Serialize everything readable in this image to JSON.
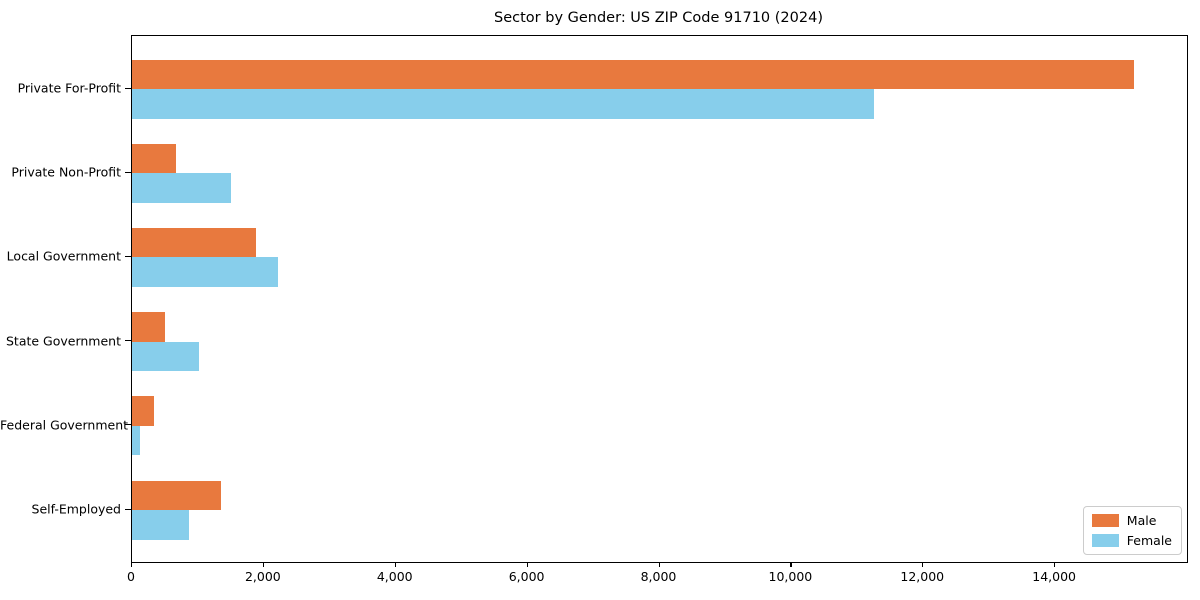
{
  "chart_data": {
    "type": "bar",
    "orientation": "horizontal",
    "title": "Sector by Gender: US ZIP Code 91710 (2024)",
    "categories": [
      "Private For-Profit",
      "Private Non-Profit",
      "Local Government",
      "State Government",
      "Federal Government",
      "Self-Employed"
    ],
    "series": [
      {
        "name": "Male",
        "color": "#e8793e",
        "values": [
          15200,
          670,
          1880,
          500,
          330,
          1350
        ]
      },
      {
        "name": "Female",
        "color": "#87ceeb",
        "values": [
          11250,
          1500,
          2210,
          1015,
          120,
          865
        ]
      }
    ],
    "xlim": [
      0,
      16000
    ],
    "xticks": [
      0,
      2000,
      4000,
      6000,
      8000,
      10000,
      12000,
      14000
    ],
    "xtick_labels": [
      "0",
      "2,000",
      "4,000",
      "6,000",
      "8,000",
      "10,000",
      "12,000",
      "14,000"
    ],
    "xlabel": "",
    "ylabel": "",
    "grid": false,
    "legend_position": "lower right"
  }
}
